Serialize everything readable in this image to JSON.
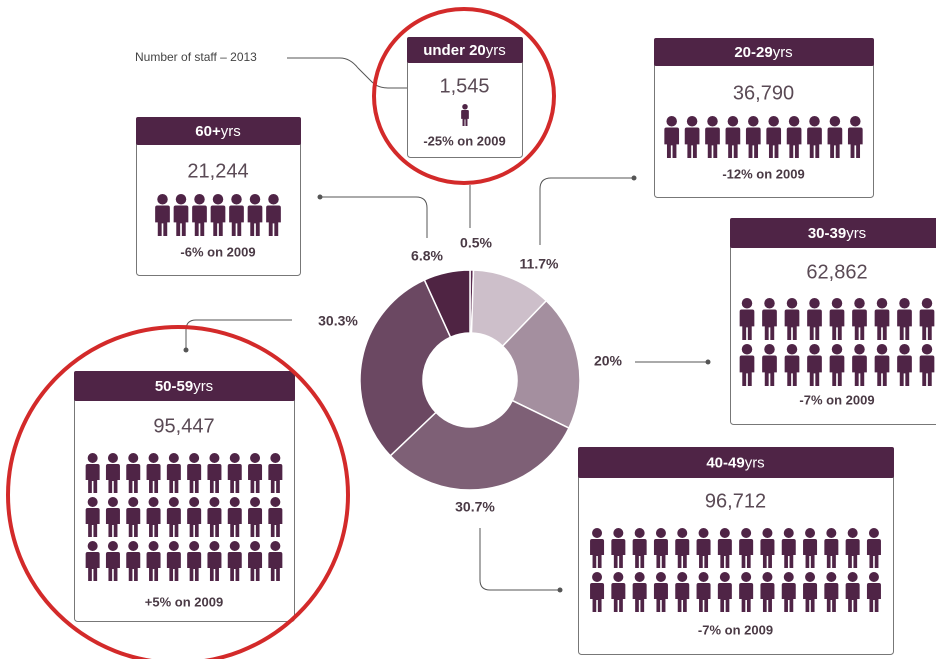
{
  "chart_data": {
    "type": "donut",
    "annotation": "Number of staff – 2013",
    "categories": [
      "under 20",
      "20-29",
      "30-39",
      "40-49",
      "50-59",
      "60+"
    ],
    "unit": "yrs",
    "values": [
      0.5,
      11.7,
      20,
      30.7,
      30.3,
      6.8
    ],
    "value_labels": [
      "0.5%",
      "11.7%",
      "20%",
      "30.7%",
      "30.3%",
      "6.8%"
    ],
    "colors": [
      "#5a2a4f",
      "#cdbfca",
      "#a48f9f",
      "#7e6076",
      "#6b4862",
      "#4f2443"
    ],
    "staff": [
      "1,545",
      "36,790",
      "62,862",
      "96,712",
      "95,447",
      "21,244"
    ],
    "changes": [
      "-25% on 2009",
      "-12% on 2009",
      "-7% on 2009",
      "-7% on 2009",
      "+5% on 2009",
      "-6% on 2009"
    ]
  }
}
